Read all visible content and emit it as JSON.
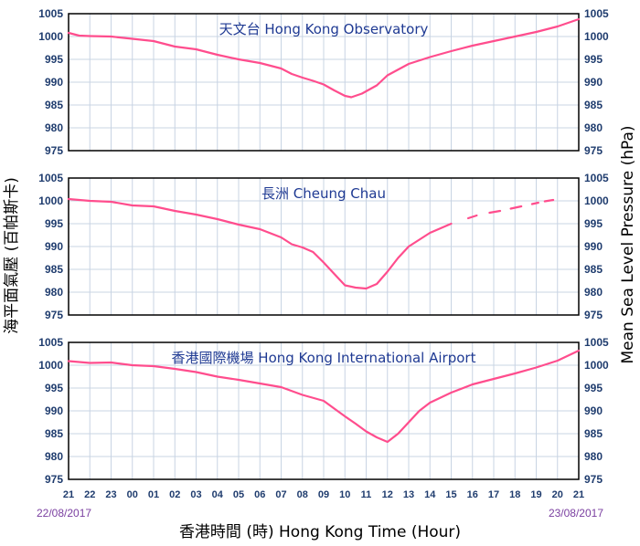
{
  "chart_data": {
    "type": "line",
    "y_axis_left": "海平面氣壓 (百帕斯卡)",
    "y_axis_right": "Mean Sea Level Pressure (hPa)",
    "x_axis_title": "香港時間 (時)   Hong Kong Time (Hour)",
    "x_ticks": [
      "21",
      "22",
      "23",
      "00",
      "01",
      "02",
      "03",
      "04",
      "05",
      "06",
      "07",
      "08",
      "09",
      "10",
      "11",
      "12",
      "13",
      "14",
      "15",
      "16",
      "17",
      "18",
      "19",
      "20",
      "21"
    ],
    "date_start": "22/08/2017",
    "date_end": "23/08/2017",
    "ylim": [
      975,
      1005
    ],
    "y_ticks": [
      975,
      980,
      985,
      990,
      995,
      1000,
      1005
    ],
    "line_color": "#ff4d8d",
    "panels": [
      {
        "title": "天文台 Hong Kong Observatory",
        "points": [
          [
            0,
            1000.8
          ],
          [
            0.5,
            1000.2
          ],
          [
            1,
            1000.1
          ],
          [
            2,
            1000.0
          ],
          [
            3,
            999.5
          ],
          [
            4,
            999.0
          ],
          [
            5,
            997.8
          ],
          [
            6,
            997.2
          ],
          [
            7,
            996.0
          ],
          [
            8,
            995.0
          ],
          [
            9,
            994.2
          ],
          [
            10,
            993.0
          ],
          [
            10.5,
            991.8
          ],
          [
            11,
            991.0
          ],
          [
            11.5,
            990.3
          ],
          [
            12,
            989.5
          ],
          [
            12.5,
            988.2
          ],
          [
            13,
            987.0
          ],
          [
            13.3,
            986.7
          ],
          [
            13.8,
            987.5
          ],
          [
            14.5,
            989.3
          ],
          [
            15,
            991.5
          ],
          [
            16,
            994.0
          ],
          [
            17,
            995.5
          ],
          [
            18,
            996.8
          ],
          [
            19,
            998.0
          ],
          [
            20,
            999.0
          ],
          [
            21,
            1000.0
          ],
          [
            22,
            1001.0
          ],
          [
            23,
            1002.2
          ],
          [
            24,
            1003.8
          ]
        ]
      },
      {
        "title": "長洲 Cheung Chau",
        "points": [
          [
            0,
            1000.4
          ],
          [
            1,
            1000.0
          ],
          [
            2,
            999.8
          ],
          [
            3,
            999.0
          ],
          [
            4,
            998.8
          ],
          [
            5,
            997.8
          ],
          [
            6,
            997.0
          ],
          [
            7,
            996.0
          ],
          [
            8,
            994.8
          ],
          [
            9,
            993.8
          ],
          [
            10,
            992.0
          ],
          [
            10.5,
            990.5
          ],
          [
            11,
            989.8
          ],
          [
            11.5,
            988.8
          ],
          [
            12,
            986.5
          ],
          [
            12.5,
            984.0
          ],
          [
            13,
            981.5
          ],
          [
            13.5,
            981.0
          ],
          [
            14,
            980.8
          ],
          [
            14.5,
            981.8
          ],
          [
            15,
            984.5
          ],
          [
            15.5,
            987.5
          ],
          [
            16,
            990.0
          ],
          [
            17,
            993.0
          ],
          [
            18,
            995.0
          ],
          [
            null,
            null
          ],
          [
            18.8,
            996.2
          ],
          [
            19.2,
            996.8
          ],
          [
            null,
            null
          ],
          [
            19.8,
            997.4
          ],
          [
            20.3,
            997.8
          ],
          [
            null,
            null
          ],
          [
            20.8,
            998.3
          ],
          [
            21.3,
            998.8
          ],
          [
            null,
            null
          ],
          [
            21.8,
            999.3
          ],
          [
            22.1,
            999.6
          ],
          [
            null,
            null
          ],
          [
            22.4,
            999.9
          ],
          [
            22.8,
            1000.2
          ]
        ]
      },
      {
        "title": "香港國際機場 Hong Kong International Airport",
        "points": [
          [
            0,
            1000.9
          ],
          [
            1,
            1000.5
          ],
          [
            2,
            1000.6
          ],
          [
            3,
            1000.0
          ],
          [
            4,
            999.8
          ],
          [
            5,
            999.2
          ],
          [
            6,
            998.5
          ],
          [
            7,
            997.5
          ],
          [
            8,
            996.8
          ],
          [
            9,
            996.0
          ],
          [
            10,
            995.2
          ],
          [
            11,
            993.5
          ],
          [
            12,
            992.2
          ],
          [
            12.5,
            990.5
          ],
          [
            13,
            988.8
          ],
          [
            13.5,
            987.2
          ],
          [
            14,
            985.5
          ],
          [
            14.5,
            984.2
          ],
          [
            15,
            983.2
          ],
          [
            15.5,
            985.0
          ],
          [
            16,
            987.5
          ],
          [
            16.5,
            990.0
          ],
          [
            17,
            991.8
          ],
          [
            18,
            994.0
          ],
          [
            19,
            995.8
          ],
          [
            20,
            997.0
          ],
          [
            21,
            998.2
          ],
          [
            22,
            999.5
          ],
          [
            23,
            1001.0
          ],
          [
            24,
            1003.2
          ]
        ]
      }
    ]
  }
}
